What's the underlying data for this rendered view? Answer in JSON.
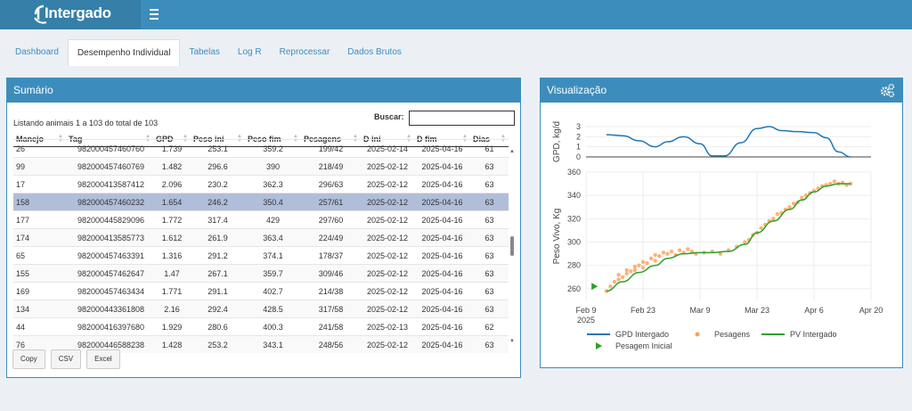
{
  "app": {
    "logo_text": "Intergado"
  },
  "tabs": [
    {
      "label": "Dashboard",
      "active": false
    },
    {
      "label": "Desempenho Individual",
      "active": true
    },
    {
      "label": "Tabelas",
      "active": false
    },
    {
      "label": "Log R",
      "active": false
    },
    {
      "label": "Reprocessar",
      "active": false
    },
    {
      "label": "Dados Brutos",
      "active": false
    }
  ],
  "sumario": {
    "title": "Sumário",
    "listing": "Listando animais 1 a 103 do total de 103",
    "search_label": "Buscar:",
    "search_value": "",
    "columns": [
      "Manejo",
      "Tag",
      "GPD",
      "Peso ini",
      "Peso fim",
      "Pesagens",
      "D ini",
      "D fim",
      "Dias"
    ],
    "rows": [
      [
        "26",
        "982000457460760",
        "1.739",
        "253.1",
        "359.2",
        "199/42",
        "2025-02-14",
        "2025-04-16",
        "61"
      ],
      [
        "99",
        "982000457460769",
        "1.482",
        "296.6",
        "390",
        "218/49",
        "2025-02-12",
        "2025-04-16",
        "63"
      ],
      [
        "17",
        "982000413587412",
        "2.096",
        "230.2",
        "362.3",
        "296/63",
        "2025-02-12",
        "2025-04-16",
        "63"
      ],
      [
        "158",
        "982000457460232",
        "1.654",
        "246.2",
        "350.4",
        "257/61",
        "2025-02-12",
        "2025-04-16",
        "63"
      ],
      [
        "177",
        "982000445829096",
        "1.772",
        "317.4",
        "429",
        "297/60",
        "2025-02-12",
        "2025-04-16",
        "63"
      ],
      [
        "174",
        "982000413585773",
        "1.612",
        "261.9",
        "363.4",
        "224/49",
        "2025-02-12",
        "2025-04-16",
        "63"
      ],
      [
        "65",
        "982000457463391",
        "1.316",
        "291.2",
        "374.1",
        "178/37",
        "2025-02-12",
        "2025-04-16",
        "63"
      ],
      [
        "155",
        "982000457462647",
        "1.47",
        "267.1",
        "359.7",
        "309/46",
        "2025-02-12",
        "2025-04-16",
        "63"
      ],
      [
        "169",
        "982000457463434",
        "1.771",
        "291.1",
        "402.7",
        "214/38",
        "2025-02-12",
        "2025-04-16",
        "63"
      ],
      [
        "134",
        "982000443361808",
        "2.16",
        "292.4",
        "428.5",
        "317/58",
        "2025-02-12",
        "2025-04-16",
        "63"
      ],
      [
        "44",
        "982000416397680",
        "1.929",
        "280.6",
        "400.3",
        "241/58",
        "2025-02-13",
        "2025-04-16",
        "62"
      ],
      [
        "76",
        "982000446588238",
        "1.428",
        "253.2",
        "343.1",
        "248/56",
        "2025-02-12",
        "2025-04-16",
        "63"
      ]
    ],
    "selected_row": 3,
    "buttons": [
      "Copy",
      "CSV",
      "Excel"
    ]
  },
  "visualizacao": {
    "title": "Visualização",
    "gear_icon": "gears-icon"
  },
  "chart_data": [
    {
      "type": "line",
      "ylabel": "GPD, kg/d",
      "ylim": [
        0,
        3
      ],
      "yticks": [
        0,
        1,
        2,
        3
      ],
      "series": [
        {
          "name": "GPD Intergado",
          "color": "#1f77b4",
          "x": [
            "2025-02-14",
            "2025-02-18",
            "2025-02-22",
            "2025-02-26",
            "2025-03-01",
            "2025-03-05",
            "2025-03-09",
            "2025-03-12",
            "2025-03-15",
            "2025-03-19",
            "2025-03-23",
            "2025-03-26",
            "2025-03-29",
            "2025-04-02",
            "2025-04-06",
            "2025-04-09",
            "2025-04-12",
            "2025-04-15"
          ],
          "y": [
            2.2,
            2.1,
            1.6,
            1.0,
            1.5,
            2.0,
            1.3,
            0.1,
            0.1,
            1.4,
            2.8,
            3.0,
            2.6,
            2.5,
            2.4,
            1.9,
            0.5,
            0.0
          ]
        }
      ]
    },
    {
      "type": "scatter",
      "ylabel": "Peso Vivo, Kg",
      "xlim": [
        "2025-02-09",
        "2025-04-20"
      ],
      "ylim": [
        250,
        360
      ],
      "yticks": [
        260,
        280,
        300,
        320,
        340,
        360
      ],
      "xticks": [
        "Feb 9\n2025",
        "Feb 23",
        "Mar 9",
        "Mar 23",
        "Apr 6",
        "Apr 20"
      ],
      "series": [
        {
          "name": "Pesagens",
          "color": "#ff9f52",
          "type": "scatter",
          "x": [
            "2025-02-14",
            "2025-02-15",
            "2025-02-16",
            "2025-02-17",
            "2025-02-17",
            "2025-02-18",
            "2025-02-19",
            "2025-02-19",
            "2025-02-20",
            "2025-02-21",
            "2025-02-21",
            "2025-02-22",
            "2025-02-23",
            "2025-02-23",
            "2025-02-24",
            "2025-02-25",
            "2025-02-26",
            "2025-02-26",
            "2025-02-27",
            "2025-02-28",
            "2025-03-01",
            "2025-03-02",
            "2025-03-03",
            "2025-03-04",
            "2025-03-05",
            "2025-03-06",
            "2025-03-07",
            "2025-03-08",
            "2025-03-10",
            "2025-03-12",
            "2025-03-14",
            "2025-03-16",
            "2025-03-18",
            "2025-03-20",
            "2025-03-21",
            "2025-03-22",
            "2025-03-23",
            "2025-03-24",
            "2025-03-25",
            "2025-03-26",
            "2025-03-27",
            "2025-03-28",
            "2025-03-29",
            "2025-03-30",
            "2025-03-31",
            "2025-04-01",
            "2025-04-02",
            "2025-04-03",
            "2025-04-04",
            "2025-04-05",
            "2025-04-06",
            "2025-04-07",
            "2025-04-08",
            "2025-04-09",
            "2025-04-10",
            "2025-04-11",
            "2025-04-12",
            "2025-04-13",
            "2025-04-14",
            "2025-04-15"
          ],
          "y": [
            258,
            262,
            266,
            268,
            272,
            270,
            276,
            273,
            275,
            279,
            276,
            280,
            278,
            283,
            282,
            286,
            284,
            289,
            288,
            291,
            290,
            292,
            289,
            293,
            291,
            294,
            292,
            290,
            291,
            292,
            290,
            293,
            296,
            300,
            302,
            306,
            308,
            312,
            315,
            318,
            320,
            324,
            325,
            328,
            330,
            333,
            334,
            338,
            340,
            342,
            344,
            346,
            348,
            349,
            350,
            352,
            350,
            351,
            349,
            350
          ]
        },
        {
          "name": "PV Intergado",
          "color": "#2ca02c",
          "type": "line",
          "x": [
            "2025-02-14",
            "2025-02-18",
            "2025-02-22",
            "2025-02-26",
            "2025-03-01",
            "2025-03-05",
            "2025-03-09",
            "2025-03-12",
            "2025-03-16",
            "2025-03-20",
            "2025-03-23",
            "2025-03-27",
            "2025-03-31",
            "2025-04-03",
            "2025-04-06",
            "2025-04-09",
            "2025-04-12",
            "2025-04-15"
          ],
          "y": [
            258,
            266,
            274,
            280,
            286,
            290,
            291,
            291,
            292,
            298,
            308,
            318,
            328,
            336,
            343,
            348,
            350,
            350
          ]
        },
        {
          "name": "Pesagem Inicial",
          "color": "#2ca02c",
          "type": "marker",
          "x": [
            "2025-02-11"
          ],
          "y": [
            262
          ]
        }
      ],
      "legend": "bottom"
    }
  ]
}
